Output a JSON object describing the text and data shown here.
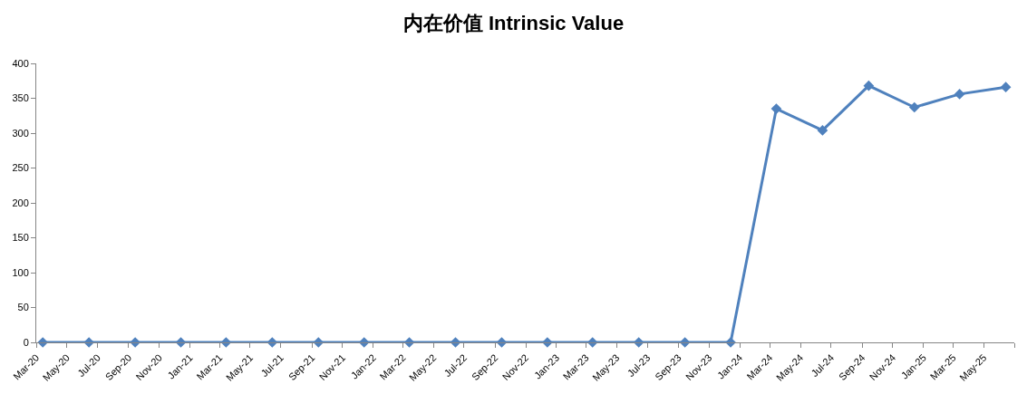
{
  "chart_data": {
    "type": "line",
    "title": "内在价值 Intrinsic Value",
    "x": [
      "2020-03-14",
      "2020-06-14",
      "2020-09-14",
      "2020-12-14",
      "2021-03-14",
      "2021-06-14",
      "2021-09-14",
      "2021-12-14",
      "2022-03-14",
      "2022-06-14",
      "2022-09-14",
      "2022-12-14",
      "2023-03-14",
      "2023-06-14",
      "2023-09-14",
      "2023-12-14",
      "2024-03-14",
      "2024-06-14",
      "2024-09-14",
      "2024-12-14",
      "2025-03-14",
      "2025-06-14"
    ],
    "series": [
      {
        "color": "#4f81bd",
        "values": [
          0,
          0,
          0,
          0,
          0,
          0,
          0,
          0,
          0,
          0,
          0,
          0,
          0,
          0,
          0,
          0,
          335,
          304,
          368,
          337,
          356,
          366
        ]
      }
    ],
    "xlim": [
      "2020-03-01",
      "2025-07-01"
    ],
    "xticks": [
      {
        "value": "2020-03-01",
        "label": "Mar-20"
      },
      {
        "value": "2020-05-01",
        "label": "May-20"
      },
      {
        "value": "2020-07-01",
        "label": "Jul-20"
      },
      {
        "value": "2020-09-01",
        "label": "Sep-20"
      },
      {
        "value": "2020-11-01",
        "label": "Nov-20"
      },
      {
        "value": "2021-01-01",
        "label": "Jan-21"
      },
      {
        "value": "2021-03-01",
        "label": "Mar-21"
      },
      {
        "value": "2021-05-01",
        "label": "May-21"
      },
      {
        "value": "2021-07-01",
        "label": "Jul-21"
      },
      {
        "value": "2021-09-01",
        "label": "Sep-21"
      },
      {
        "value": "2021-11-01",
        "label": "Nov-21"
      },
      {
        "value": "2022-01-01",
        "label": "Jan-22"
      },
      {
        "value": "2022-03-01",
        "label": "Mar-22"
      },
      {
        "value": "2022-05-01",
        "label": "May-22"
      },
      {
        "value": "2022-07-01",
        "label": "Jul-22"
      },
      {
        "value": "2022-09-01",
        "label": "Sep-22"
      },
      {
        "value": "2022-11-01",
        "label": "Nov-22"
      },
      {
        "value": "2023-01-01",
        "label": "Jan-23"
      },
      {
        "value": "2023-03-01",
        "label": "Mar-23"
      },
      {
        "value": "2023-05-01",
        "label": "May-23"
      },
      {
        "value": "2023-07-01",
        "label": "Jul-23"
      },
      {
        "value": "2023-09-01",
        "label": "Sep-23"
      },
      {
        "value": "2023-11-01",
        "label": "Nov-23"
      },
      {
        "value": "2024-01-01",
        "label": "Jan-24"
      },
      {
        "value": "2024-03-01",
        "label": "Mar-24"
      },
      {
        "value": "2024-05-01",
        "label": "May-24"
      },
      {
        "value": "2024-07-01",
        "label": "Jul-24"
      },
      {
        "value": "2024-09-01",
        "label": "Sep-24"
      },
      {
        "value": "2024-11-01",
        "label": "Nov-24"
      },
      {
        "value": "2025-01-01",
        "label": "Jan-25"
      },
      {
        "value": "2025-03-01",
        "label": "Mar-25"
      },
      {
        "value": "2025-05-01",
        "label": "May-25"
      },
      {
        "value": "2025-07-01",
        "label": null
      }
    ],
    "ylim": [
      0,
      400
    ],
    "yticks": [
      0,
      50,
      100,
      150,
      200,
      250,
      300,
      350,
      400
    ],
    "grid": false,
    "marker": "diamond",
    "line_style": "solid"
  }
}
